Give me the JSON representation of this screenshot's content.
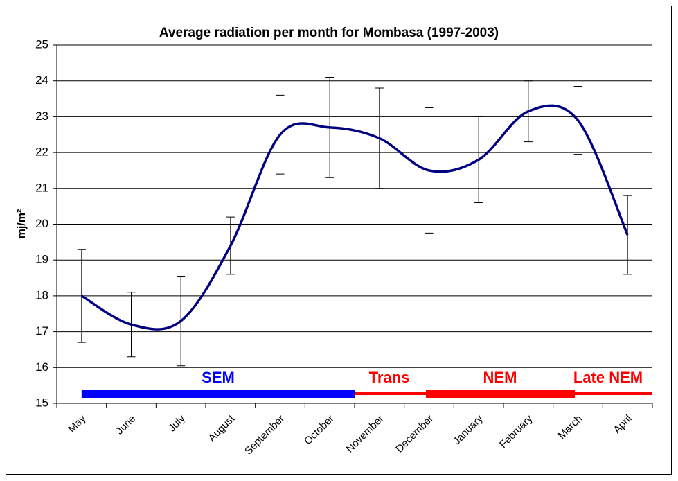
{
  "chart_data": {
    "type": "line",
    "title": "Average radiation per month for Mombasa (1997-2003)",
    "ylabel": "mj/m²",
    "categories": [
      "May",
      "June",
      "July",
      "August",
      "September",
      "October",
      "November",
      "December",
      "January",
      "February",
      "March",
      "April"
    ],
    "series": [
      {
        "name": "Average radiation",
        "color": "#000080",
        "values": [
          18.0,
          17.2,
          17.3,
          19.4,
          22.5,
          22.7,
          22.4,
          21.5,
          21.8,
          23.15,
          22.9,
          19.7
        ],
        "errors": [
          1.3,
          0.9,
          1.25,
          0.8,
          1.1,
          1.4,
          1.4,
          1.75,
          1.2,
          0.85,
          0.95,
          1.1
        ]
      }
    ],
    "ylim": [
      15,
      25
    ],
    "yticks": [
      15,
      16,
      17,
      18,
      19,
      20,
      21,
      22,
      23,
      24,
      25
    ],
    "grid": true,
    "annotations": [
      {
        "label": "SEM",
        "color": "#0000ff"
      },
      {
        "label": "Trans",
        "color": "#ff0000"
      },
      {
        "label": "NEM",
        "color": "#ff0000"
      },
      {
        "label": "Late NEM",
        "color": "#ff0000"
      }
    ]
  }
}
